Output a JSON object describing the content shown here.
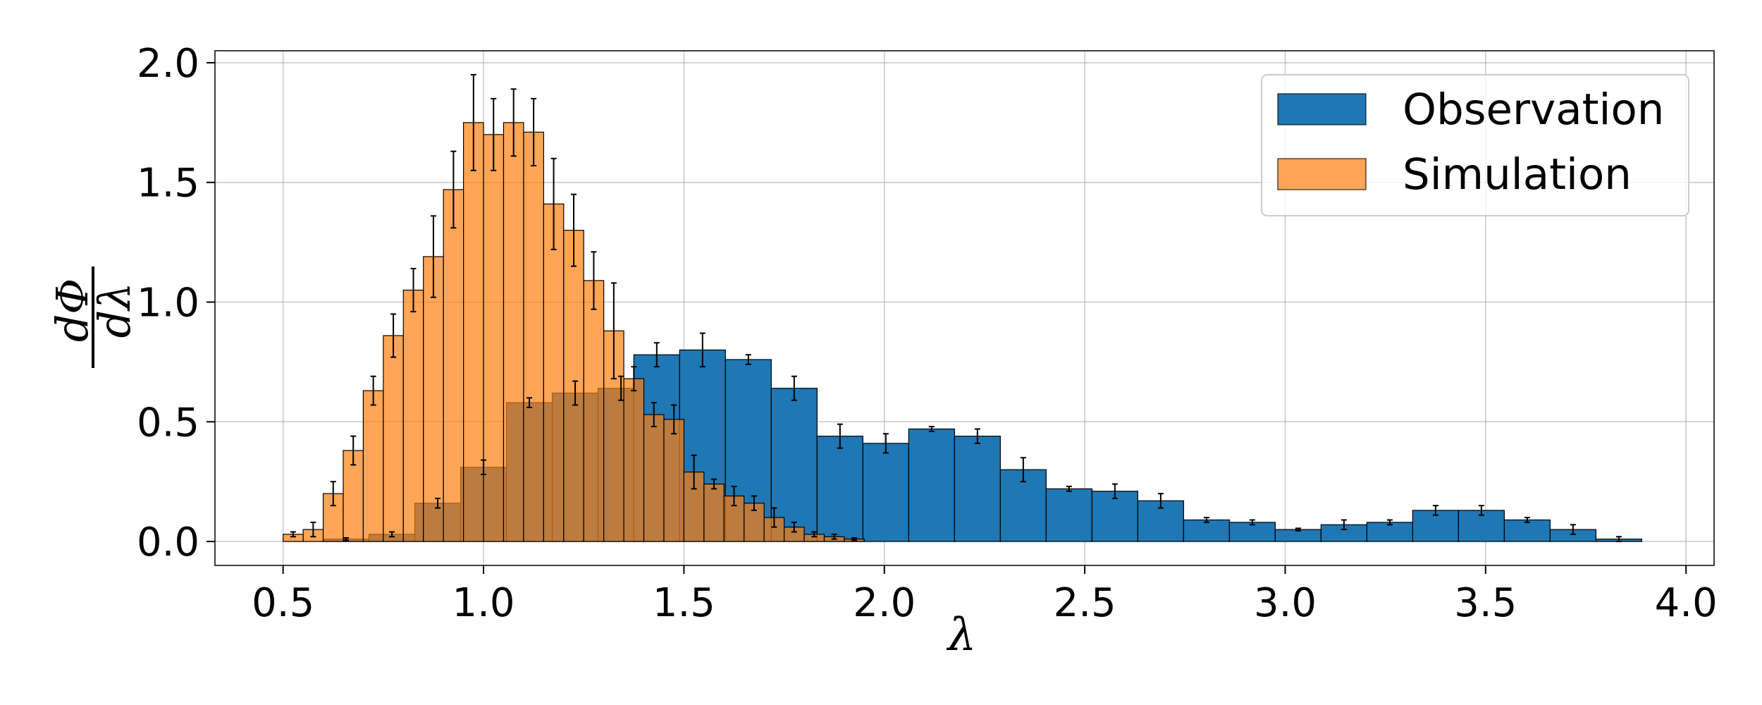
{
  "chart_data": {
    "type": "bar",
    "title": "",
    "xlabel": "λ",
    "ylabel_numerator": "dΦ",
    "ylabel_denominator": "dλ",
    "xlim": [
      0.33,
      4.07
    ],
    "ylim": [
      -0.1,
      2.05
    ],
    "xticks": [
      "0.5",
      "1.0",
      "1.5",
      "2.0",
      "2.5",
      "3.0",
      "3.5",
      "4.0"
    ],
    "yticks": [
      "0.0",
      "0.5",
      "1.0",
      "1.5",
      "2.0"
    ],
    "grid": true,
    "legend_position": "top-right",
    "series": [
      {
        "name": "Observation",
        "color": "#1f77b4",
        "alpha": 1.0,
        "bin_start": 1.375,
        "bin_width": 0.1143,
        "values": [
          0.78,
          0.8,
          0.76,
          0.64,
          0.44,
          0.41,
          0.47,
          0.44,
          0.3,
          0.22,
          0.21,
          0.17,
          0.09,
          0.08,
          0.05,
          0.07,
          0.08,
          0.13,
          0.13,
          0.09,
          0.05,
          0.01
        ],
        "errors": [
          0.05,
          0.07,
          0.02,
          0.05,
          0.05,
          0.04,
          0.01,
          0.03,
          0.05,
          0.01,
          0.03,
          0.03,
          0.01,
          0.01,
          0.005,
          0.02,
          0.01,
          0.02,
          0.02,
          0.01,
          0.02,
          0.01
        ]
      },
      {
        "name": "Simulation",
        "color": "#ff7f0e",
        "alpha": 0.7,
        "bin_start": 0.5,
        "bin_width": 0.05,
        "values": [
          0.03,
          0.05,
          0.2,
          0.38,
          0.63,
          0.86,
          1.05,
          1.19,
          1.47,
          1.75,
          1.7,
          1.75,
          1.71,
          1.41,
          1.3,
          1.09,
          0.88,
          0.68,
          0.53,
          0.51,
          0.29,
          0.24,
          0.19,
          0.16,
          0.1,
          0.06,
          0.03,
          0.02,
          0.01
        ],
        "errors": [
          0.01,
          0.03,
          0.05,
          0.06,
          0.06,
          0.09,
          0.09,
          0.17,
          0.16,
          0.2,
          0.15,
          0.14,
          0.14,
          0.19,
          0.15,
          0.12,
          0.2,
          0.05,
          0.05,
          0.06,
          0.07,
          0.02,
          0.04,
          0.03,
          0.04,
          0.02,
          0.01,
          0.01,
          0.005
        ]
      },
      {
        "name": "",
        "color": "#1f77b4",
        "alpha": 1.0,
        "underlay": true,
        "bin_start": 0.6,
        "bin_width": 0.1143,
        "values": [
          0.01,
          0.03,
          0.16,
          0.31,
          0.58,
          0.62,
          0.64
        ],
        "errors": [
          0.005,
          0.01,
          0.02,
          0.03,
          0.02,
          0.05,
          0.05
        ]
      }
    ]
  }
}
